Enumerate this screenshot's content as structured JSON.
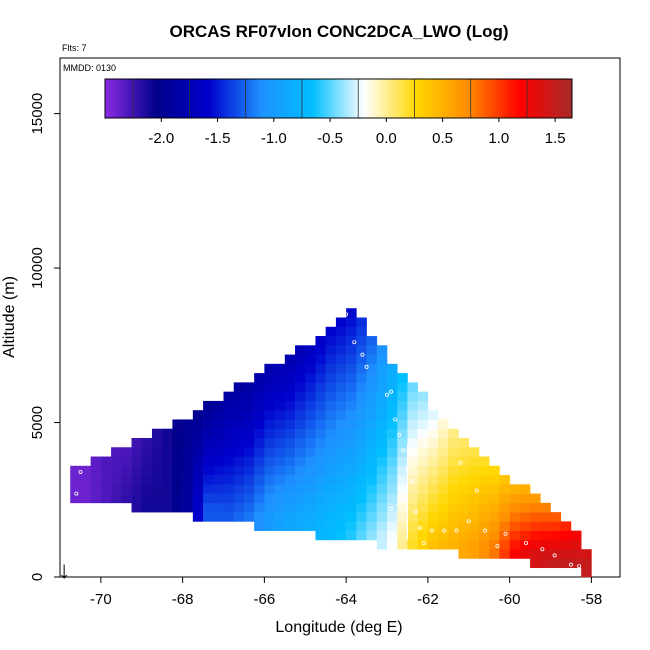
{
  "chart_data": {
    "type": "heatmap",
    "title": "ORCAS RF07vlon CONC2DCA_LWO (Log)",
    "top_left_note": "Flts: 7",
    "panel_note": "MMDD: 0130",
    "xlabel": "Longitude (deg E)",
    "ylabel": "Altitude (m)",
    "xlim": [
      -71.0,
      -57.3
    ],
    "ylim": [
      0,
      16800
    ],
    "x_ticks": [
      -70,
      -68,
      -66,
      -64,
      -62,
      -60,
      -58
    ],
    "x_tick_labels": [
      "-70",
      "-68",
      "-66",
      "-64",
      "-62",
      "-60",
      "-58"
    ],
    "y_ticks": [
      0,
      5000,
      10000,
      15000
    ],
    "y_tick_labels": [
      "0",
      "5000",
      "10000",
      "15000"
    ],
    "colorbar": {
      "range": [
        -2.5,
        1.65
      ],
      "ticks": [
        -2.0,
        -1.5,
        -1.0,
        -0.5,
        0.0,
        0.5,
        1.0,
        1.5
      ],
      "tick_labels": [
        "-2.0",
        "-1.5",
        "-1.0",
        "-0.5",
        "0.0",
        "0.5",
        "1.0",
        "1.5"
      ],
      "colors": [
        "#8a2be2",
        "#00008b",
        "#0000cd",
        "#1e90ff",
        "#00bfff",
        "#ffffff",
        "#ffd700",
        "#ff8c00",
        "#ff0000",
        "#a52a2a"
      ]
    },
    "cell_width_deg": 0.25,
    "cell_height_m": 300,
    "columns": [
      {
        "lon": -70.5,
        "bottom": 2500,
        "top": 3500,
        "v_bottom": -2.4,
        "v_top": -2.4
      },
      {
        "lon": -70.0,
        "bottom": 2500,
        "top": 3800,
        "v_bottom": -2.3,
        "v_top": -2.3
      },
      {
        "lon": -69.5,
        "bottom": 2400,
        "top": 4100,
        "v_bottom": -2.2,
        "v_top": -2.3
      },
      {
        "lon": -69.0,
        "bottom": 2300,
        "top": 4400,
        "v_bottom": -2.1,
        "v_top": -2.2
      },
      {
        "lon": -68.5,
        "bottom": 2200,
        "top": 4800,
        "v_bottom": -2.1,
        "v_top": -2.1
      },
      {
        "lon": -68.0,
        "bottom": 2100,
        "top": 5100,
        "v_bottom": -1.9,
        "v_top": -2.0
      },
      {
        "lon": -67.5,
        "bottom": 2000,
        "top": 5500,
        "v_bottom": -1.3,
        "v_top": -2.0
      },
      {
        "lon": -67.0,
        "bottom": 1900,
        "top": 5900,
        "v_bottom": -1.3,
        "v_top": -1.9
      },
      {
        "lon": -66.5,
        "bottom": 1800,
        "top": 6300,
        "v_bottom": -1.2,
        "v_top": -1.9
      },
      {
        "lon": -66.0,
        "bottom": 1700,
        "top": 6700,
        "v_bottom": -1.0,
        "v_top": -1.8
      },
      {
        "lon": -65.5,
        "bottom": 1600,
        "top": 7100,
        "v_bottom": -0.9,
        "v_top": -1.8
      },
      {
        "lon": -65.0,
        "bottom": 1500,
        "top": 7500,
        "v_bottom": -0.8,
        "v_top": -1.7
      },
      {
        "lon": -64.5,
        "bottom": 1400,
        "top": 8000,
        "v_bottom": -0.7,
        "v_top": -1.6
      },
      {
        "lon": -64.0,
        "bottom": 1300,
        "top": 8700,
        "v_bottom": -0.6,
        "v_top": -1.6
      },
      {
        "lon": -63.5,
        "bottom": 1200,
        "top": 7800,
        "v_bottom": -0.4,
        "v_top": -1.3
      },
      {
        "lon": -63.0,
        "bottom": 1100,
        "top": 6900,
        "v_bottom": -0.2,
        "v_top": -0.9
      },
      {
        "lon": -62.5,
        "bottom": 1000,
        "top": 6300,
        "v_bottom": 0.2,
        "v_top": -0.5
      },
      {
        "lon": -62.0,
        "bottom": 950,
        "top": 5400,
        "v_bottom": 0.4,
        "v_top": -0.3
      },
      {
        "lon": -61.5,
        "bottom": 900,
        "top": 4700,
        "v_bottom": 0.5,
        "v_top": 0.0
      },
      {
        "lon": -61.0,
        "bottom": 850,
        "top": 4200,
        "v_bottom": 0.6,
        "v_top": 0.1
      },
      {
        "lon": -60.5,
        "bottom": 750,
        "top": 3600,
        "v_bottom": 0.8,
        "v_top": 0.2
      },
      {
        "lon": -60.0,
        "bottom": 650,
        "top": 3000,
        "v_bottom": 1.2,
        "v_top": 0.4
      },
      {
        "lon": -59.5,
        "bottom": 550,
        "top": 2500,
        "v_bottom": 1.4,
        "v_top": 0.6
      },
      {
        "lon": -59.0,
        "bottom": 450,
        "top": 2000,
        "v_bottom": 1.5,
        "v_top": 0.8
      },
      {
        "lon": -58.5,
        "bottom": 350,
        "top": 1400,
        "v_bottom": 1.5,
        "v_top": 1.2
      },
      {
        "lon": -58.25,
        "bottom": 250,
        "top": 700,
        "v_bottom": 1.5,
        "v_top": 1.4
      }
    ],
    "flight_points": [
      {
        "lon": -70.6,
        "alt": 2700
      },
      {
        "lon": -70.5,
        "alt": 3400
      },
      {
        "lon": -64.0,
        "alt": 8500
      },
      {
        "lon": -63.8,
        "alt": 7600
      },
      {
        "lon": -63.6,
        "alt": 7200
      },
      {
        "lon": -63.5,
        "alt": 6800
      },
      {
        "lon": -63.0,
        "alt": 5900
      },
      {
        "lon": -62.9,
        "alt": 6000
      },
      {
        "lon": -62.8,
        "alt": 5100
      },
      {
        "lon": -62.7,
        "alt": 4600
      },
      {
        "lon": -62.6,
        "alt": 4100
      },
      {
        "lon": -62.5,
        "alt": 3500
      },
      {
        "lon": -62.4,
        "alt": 3100
      },
      {
        "lon": -62.6,
        "alt": 2500
      },
      {
        "lon": -62.9,
        "alt": 2200
      },
      {
        "lon": -62.3,
        "alt": 2100
      },
      {
        "lon": -62.2,
        "alt": 1600
      },
      {
        "lon": -61.9,
        "alt": 1500
      },
      {
        "lon": -61.6,
        "alt": 1500
      },
      {
        "lon": -61.3,
        "alt": 1500
      },
      {
        "lon": -61.0,
        "alt": 1800
      },
      {
        "lon": -60.6,
        "alt": 1500
      },
      {
        "lon": -60.1,
        "alt": 1400
      },
      {
        "lon": -59.6,
        "alt": 1100
      },
      {
        "lon": -59.2,
        "alt": 900
      },
      {
        "lon": -58.9,
        "alt": 700
      },
      {
        "lon": -58.5,
        "alt": 400
      },
      {
        "lon": -58.3,
        "alt": 350
      },
      {
        "lon": -61.2,
        "alt": 3700
      },
      {
        "lon": -60.8,
        "alt": 2800
      },
      {
        "lon": -62.1,
        "alt": 1100
      },
      {
        "lon": -60.3,
        "alt": 1000
      }
    ],
    "vertical_line": {
      "lon": -62.5,
      "alt_from": 1200,
      "alt_to": 4300
    },
    "marker": {
      "lon": -70.9,
      "symbol": "↓"
    }
  }
}
